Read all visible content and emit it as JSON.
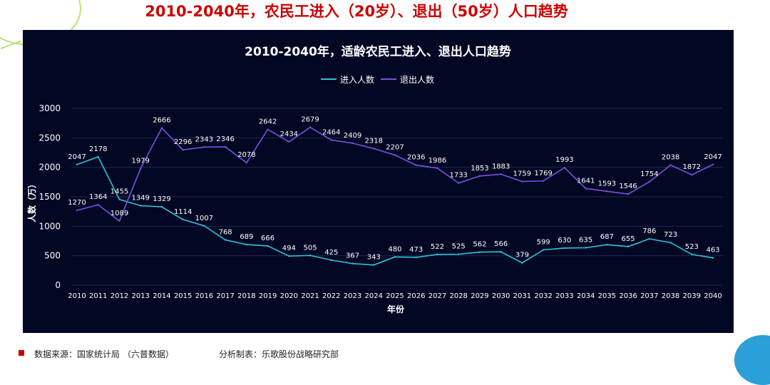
{
  "page_title": "2010-2040年，农民工进入（20岁）、退出（50岁）人口趋势",
  "footer": {
    "source": "数据来源：国家统计局 （六普数据）",
    "made_by": "分析制表：乐歌股份战略研究部"
  },
  "colors": {
    "panel_bg": "#020824",
    "entering": "#2ec4d6",
    "exiting": "#7b4fe0",
    "title_red": "#cc0000"
  },
  "chart_data": {
    "type": "line",
    "title": "2010-2040年，适龄农民工进入、退出人口趋势",
    "xlabel": "年份",
    "ylabel": "人数（万）",
    "ylim": [
      0,
      3000
    ],
    "yticks": [
      0,
      500,
      1000,
      1500,
      2000,
      2500,
      3000
    ],
    "legend_position": "top-center",
    "grid": true,
    "x": [
      "2010",
      "2011",
      "2012",
      "2013",
      "2014",
      "2015",
      "2016",
      "2017",
      "2018",
      "2019",
      "2020",
      "2021",
      "2022",
      "2023",
      "2024",
      "2025",
      "2026",
      "2027",
      "2028",
      "2029",
      "2030",
      "2031",
      "2032",
      "2033",
      "2034",
      "2035",
      "2036",
      "2037",
      "2038",
      "2039",
      "2040"
    ],
    "series": [
      {
        "name": "进入人数",
        "color": "#2ec4d6",
        "values": [
          2047,
          2178,
          1455,
          1349,
          1329,
          1114,
          1007,
          768,
          689,
          666,
          494,
          505,
          425,
          367,
          343,
          480,
          473,
          522,
          525,
          562,
          566,
          379,
          599,
          630,
          635,
          687,
          655,
          786,
          723,
          523,
          463
        ]
      },
      {
        "name": "退出人数",
        "color": "#7b4fe0",
        "values": [
          1270,
          1364,
          1089,
          1979,
          2666,
          2296,
          2343,
          2346,
          2078,
          2642,
          2434,
          2679,
          2464,
          2409,
          2318,
          2207,
          2036,
          1986,
          1733,
          1853,
          1883,
          1759,
          1769,
          1993,
          1641,
          1593,
          1546,
          1754,
          2038,
          1872,
          2047
        ]
      }
    ]
  }
}
